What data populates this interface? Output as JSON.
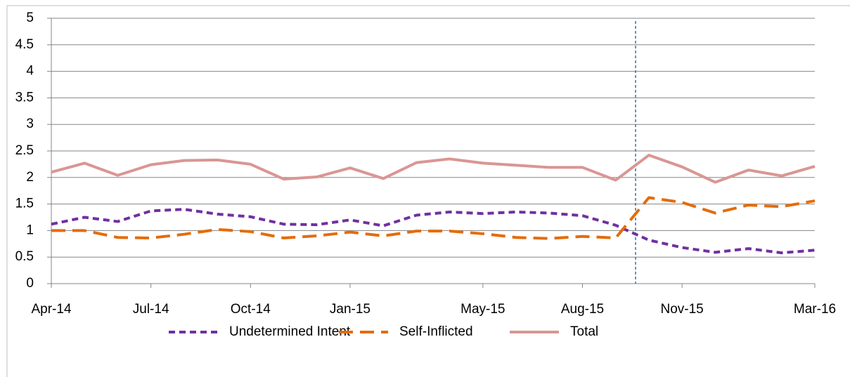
{
  "chart_data": {
    "type": "line",
    "categories": [
      "Apr-14",
      null,
      null,
      "Jul-14",
      null,
      null,
      "Oct-14",
      null,
      null,
      "Jan-15",
      null,
      null,
      null,
      "May-15",
      null,
      null,
      "Aug-15",
      null,
      null,
      "Nov-15",
      null,
      null,
      null,
      "Mar-16"
    ],
    "series": [
      {
        "name": "Undetermined Intent",
        "color": "#7030a0",
        "dash": "dashed",
        "values": [
          1.12,
          1.25,
          1.17,
          1.37,
          1.4,
          1.31,
          1.26,
          1.12,
          1.11,
          1.2,
          1.09,
          1.29,
          1.35,
          1.32,
          1.35,
          1.33,
          1.28,
          1.1,
          0.82,
          0.68,
          0.59,
          0.66,
          0.58,
          0.63
        ]
      },
      {
        "name": "Self-Inflicted",
        "color": "#e46c0a",
        "dash": "long-dashed",
        "values": [
          1.0,
          1.0,
          0.87,
          0.86,
          0.93,
          1.02,
          0.98,
          0.86,
          0.9,
          0.97,
          0.9,
          0.99,
          0.99,
          0.94,
          0.87,
          0.85,
          0.89,
          0.86,
          1.62,
          1.53,
          1.33,
          1.48,
          1.45,
          1.56
        ]
      },
      {
        "name": "Total",
        "color": "#d99694",
        "dash": "solid",
        "values": [
          2.1,
          2.27,
          2.04,
          2.24,
          2.32,
          2.33,
          2.25,
          1.97,
          2.01,
          2.18,
          1.98,
          2.28,
          2.35,
          2.27,
          2.23,
          2.19,
          2.19,
          1.95,
          2.42,
          2.2,
          1.91,
          2.14,
          2.03,
          2.21
        ]
      }
    ],
    "ylim": [
      0,
      5
    ],
    "yticks": [
      0,
      0.5,
      1,
      1.5,
      2,
      2.5,
      3,
      3.5,
      4,
      4.5,
      5
    ],
    "grid": true,
    "legend": "bottom"
  }
}
